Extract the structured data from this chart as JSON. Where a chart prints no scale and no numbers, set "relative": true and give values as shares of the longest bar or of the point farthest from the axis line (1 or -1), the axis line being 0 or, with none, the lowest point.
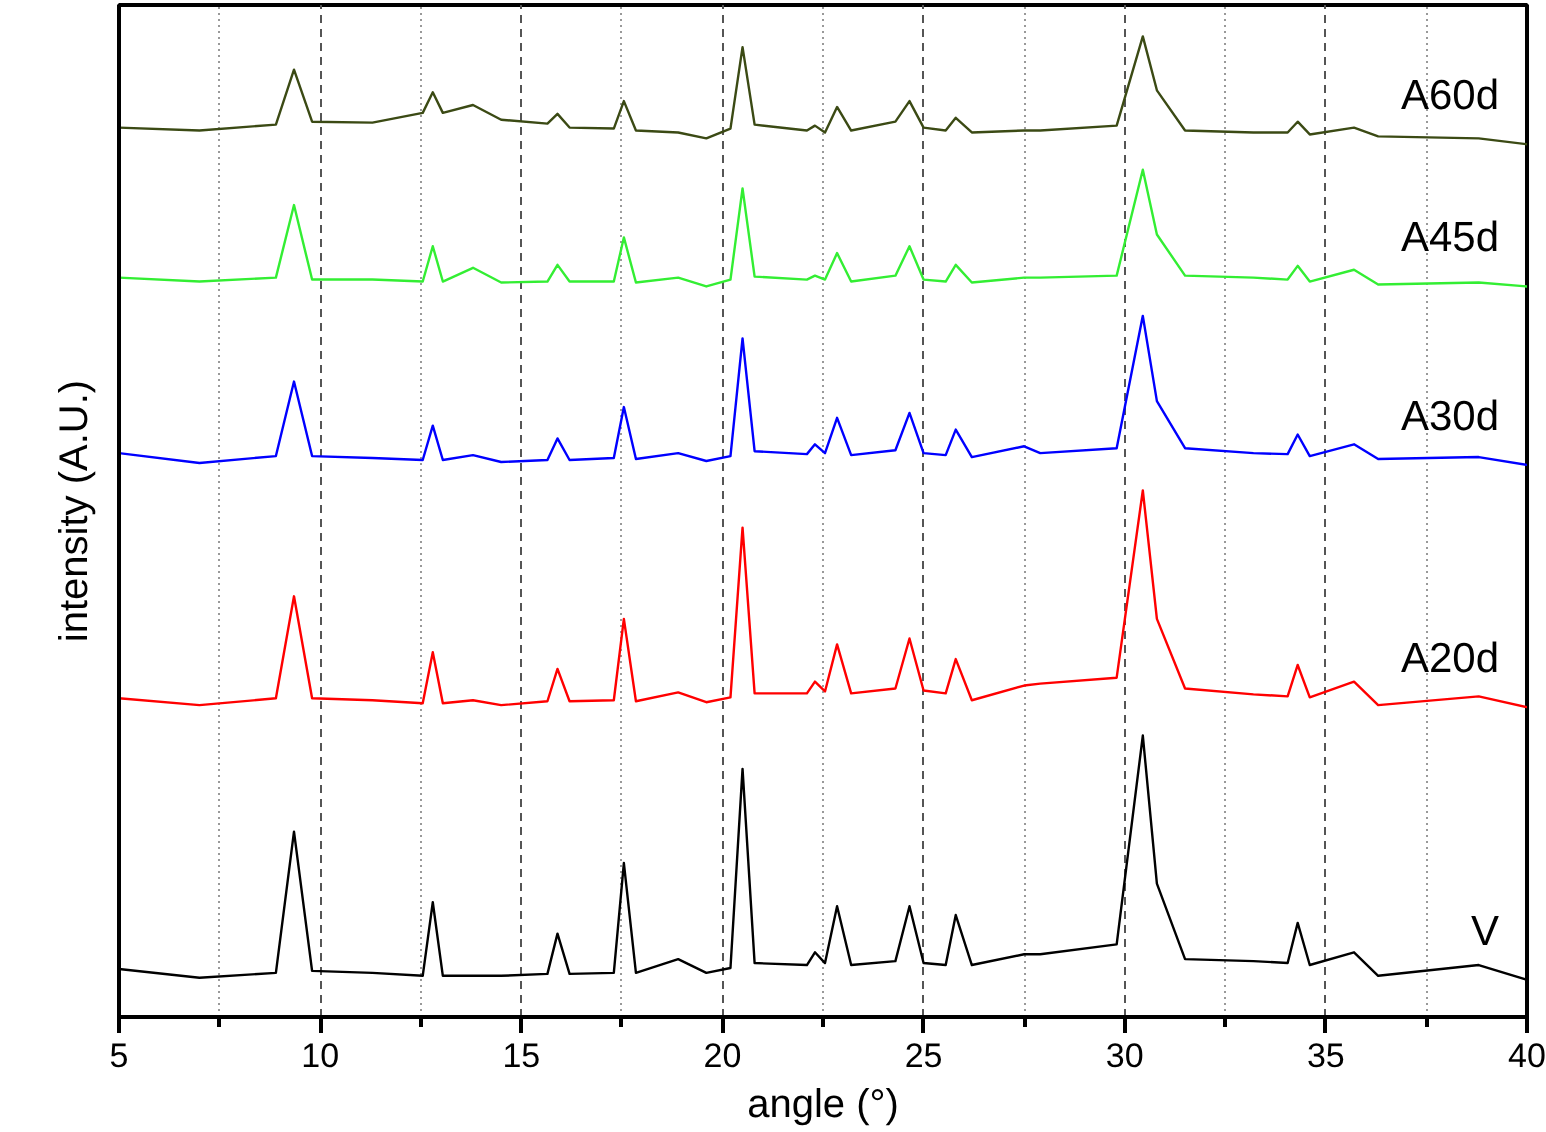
{
  "chart_data": {
    "type": "line",
    "xlabel": "angle (°)",
    "ylabel": "intensity (A.U.)",
    "relative": true,
    "grid": "x",
    "legend": false,
    "line_style": "solid",
    "marker": "none",
    "xlim": [
      5,
      40
    ],
    "xticks": [
      5,
      {
        "value": 7.5,
        "label": null
      },
      10,
      {
        "value": 12.5,
        "label": null
      },
      15,
      {
        "value": 17.5,
        "label": null
      },
      20,
      {
        "value": 22.5,
        "label": null
      },
      25,
      {
        "value": 27.5,
        "label": null
      },
      30,
      {
        "value": 32.5,
        "label": null
      },
      35,
      {
        "value": 37.5,
        "label": null
      },
      40
    ],
    "x": [
      5,
      7,
      8.9,
      9.35,
      9.8,
      11.3,
      12.55,
      12.8,
      13.05,
      13.8,
      14.5,
      15.65,
      15.9,
      16.2,
      17.3,
      17.55,
      17.85,
      18.9,
      19.6,
      20.2,
      20.5,
      20.8,
      22.1,
      22.3,
      22.55,
      22.85,
      23.2,
      24.3,
      24.65,
      25.0,
      25.55,
      25.8,
      26.2,
      27.5,
      27.9,
      29.8,
      30.45,
      30.8,
      31.5,
      33.2,
      34.05,
      34.3,
      34.6,
      35.7,
      36.3,
      38.8,
      40
    ],
    "series": [
      {
        "name": "V",
        "color": "#000000",
        "values": [
          0.049,
          0.04,
          0.045,
          0.189,
          0.047,
          0.045,
          0.042,
          0.117,
          0.042,
          0.042,
          0.042,
          0.044,
          0.085,
          0.044,
          0.045,
          0.157,
          0.045,
          0.059,
          0.045,
          0.05,
          0.253,
          0.055,
          0.053,
          0.066,
          0.055,
          0.113,
          0.053,
          0.057,
          0.113,
          0.055,
          0.053,
          0.104,
          0.053,
          0.064,
          0.064,
          0.074,
          0.287,
          0.136,
          0.059,
          0.057,
          0.055,
          0.096,
          0.053,
          0.066,
          0.042,
          0.053,
          0.038
        ]
      },
      {
        "name": "A20d",
        "color": "#ff0000",
        "values": [
          0.325,
          0.318,
          0.325,
          0.429,
          0.325,
          0.323,
          0.32,
          0.372,
          0.32,
          0.323,
          0.318,
          0.322,
          0.355,
          0.322,
          0.323,
          0.406,
          0.322,
          0.331,
          0.321,
          0.326,
          0.499,
          0.33,
          0.33,
          0.342,
          0.332,
          0.38,
          0.33,
          0.335,
          0.386,
          0.333,
          0.33,
          0.365,
          0.323,
          0.338,
          0.34,
          0.346,
          0.537,
          0.406,
          0.335,
          0.329,
          0.327,
          0.359,
          0.326,
          0.342,
          0.318,
          0.327,
          0.316
        ]
      },
      {
        "name": "A30d",
        "color": "#0000ff",
        "values": [
          0.575,
          0.565,
          0.572,
          0.648,
          0.572,
          0.57,
          0.568,
          0.603,
          0.568,
          0.573,
          0.566,
          0.568,
          0.59,
          0.568,
          0.57,
          0.622,
          0.569,
          0.575,
          0.567,
          0.572,
          0.692,
          0.577,
          0.574,
          0.584,
          0.575,
          0.611,
          0.573,
          0.578,
          0.616,
          0.575,
          0.573,
          0.599,
          0.571,
          0.582,
          0.575,
          0.58,
          0.715,
          0.628,
          0.58,
          0.575,
          0.574,
          0.594,
          0.572,
          0.584,
          0.569,
          0.571,
          0.563
        ]
      },
      {
        "name": "A45d",
        "color": "#33ee33",
        "values": [
          0.754,
          0.75,
          0.754,
          0.828,
          0.752,
          0.752,
          0.75,
          0.786,
          0.75,
          0.764,
          0.749,
          0.75,
          0.767,
          0.75,
          0.75,
          0.795,
          0.749,
          0.754,
          0.745,
          0.752,
          0.845,
          0.755,
          0.752,
          0.756,
          0.752,
          0.779,
          0.75,
          0.756,
          0.786,
          0.752,
          0.75,
          0.767,
          0.749,
          0.754,
          0.754,
          0.756,
          0.864,
          0.798,
          0.756,
          0.754,
          0.752,
          0.766,
          0.75,
          0.762,
          0.747,
          0.749,
          0.745
        ]
      },
      {
        "name": "A60d",
        "color": "#3b4a14",
        "values": [
          0.907,
          0.904,
          0.91,
          0.966,
          0.913,
          0.912,
          0.922,
          0.943,
          0.922,
          0.93,
          0.915,
          0.911,
          0.921,
          0.907,
          0.906,
          0.934,
          0.904,
          0.902,
          0.896,
          0.906,
          0.989,
          0.91,
          0.904,
          0.909,
          0.902,
          0.928,
          0.904,
          0.913,
          0.934,
          0.907,
          0.904,
          0.917,
          0.902,
          0.904,
          0.904,
          0.909,
          1.0,
          0.945,
          0.904,
          0.902,
          0.902,
          0.913,
          0.9,
          0.907,
          0.898,
          0.896,
          0.89
        ]
      }
    ]
  }
}
